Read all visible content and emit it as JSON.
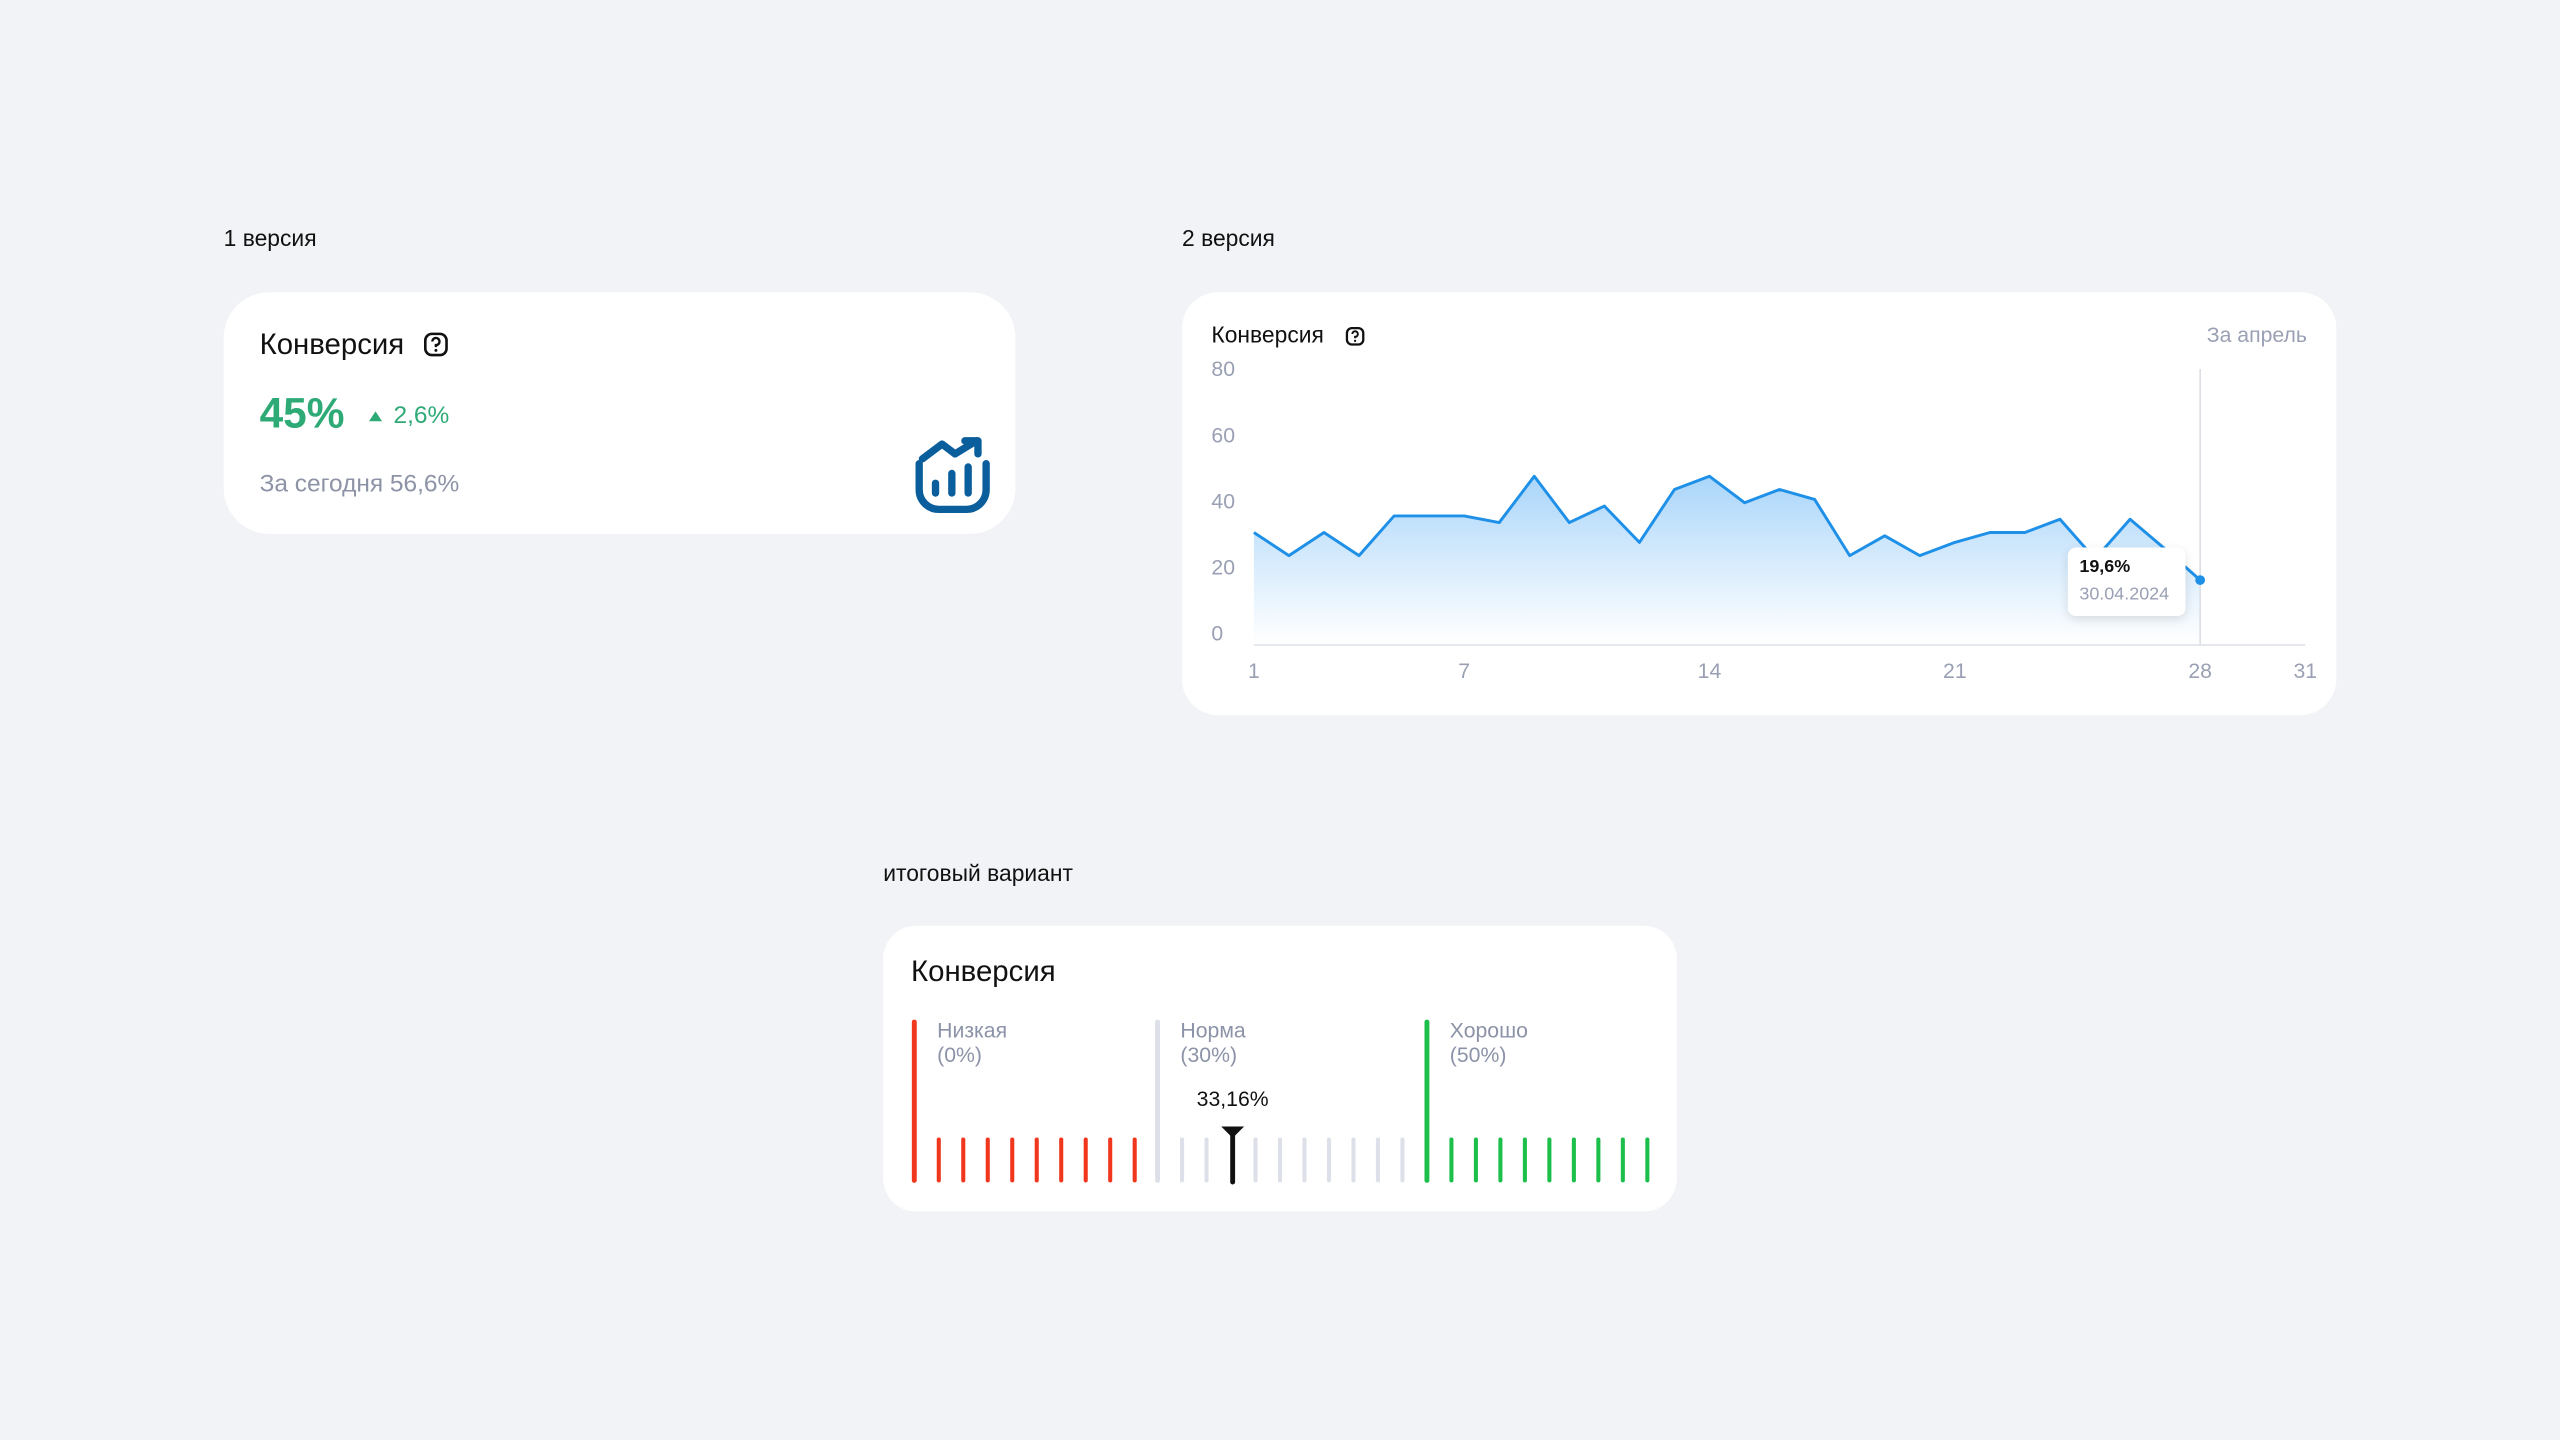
{
  "version1": {
    "label": "1 версия",
    "title": "Конверсия",
    "value": "45%",
    "change": "2,6%",
    "today": "За сегодня 56,6%"
  },
  "chart_data": {
    "type": "line",
    "label": "2 версия",
    "title": "Конверсия",
    "period": "За апрель",
    "x": [
      1,
      2,
      3,
      4,
      5,
      6,
      7,
      8,
      9,
      10,
      11,
      12,
      13,
      14,
      15,
      16,
      17,
      18,
      19,
      20,
      21,
      22,
      23,
      24,
      25,
      26,
      27,
      28
    ],
    "values": [
      34,
      27,
      34,
      27,
      39,
      39,
      39,
      37,
      51,
      37,
      42,
      31,
      47,
      51,
      43,
      47,
      44,
      27,
      33,
      27,
      31,
      34,
      34,
      38,
      26,
      38,
      29,
      19.6
    ],
    "color": "#1e90e8",
    "xlim": [
      1,
      31
    ],
    "xticks": [
      1,
      7,
      14,
      21,
      28,
      31
    ],
    "ylim": [
      0,
      80
    ],
    "yticks": [
      0,
      20,
      40,
      60,
      80
    ],
    "annotations": [
      {
        "x": 28,
        "y": 19.6,
        "label": "19,6%",
        "date": "30.04.2024"
      }
    ]
  },
  "final": {
    "label": "итоговый вариант",
    "title": "Конверсия",
    "zones": [
      {
        "name": "Низкая",
        "threshold": "(0%)",
        "color": "#f0361c"
      },
      {
        "name": "Норма",
        "threshold": "(30%)",
        "color": "#dde0e8"
      },
      {
        "name": "Хорошо",
        "threshold": "(50%)",
        "color": "#1cbf4a"
      }
    ],
    "value": "33,16%"
  }
}
